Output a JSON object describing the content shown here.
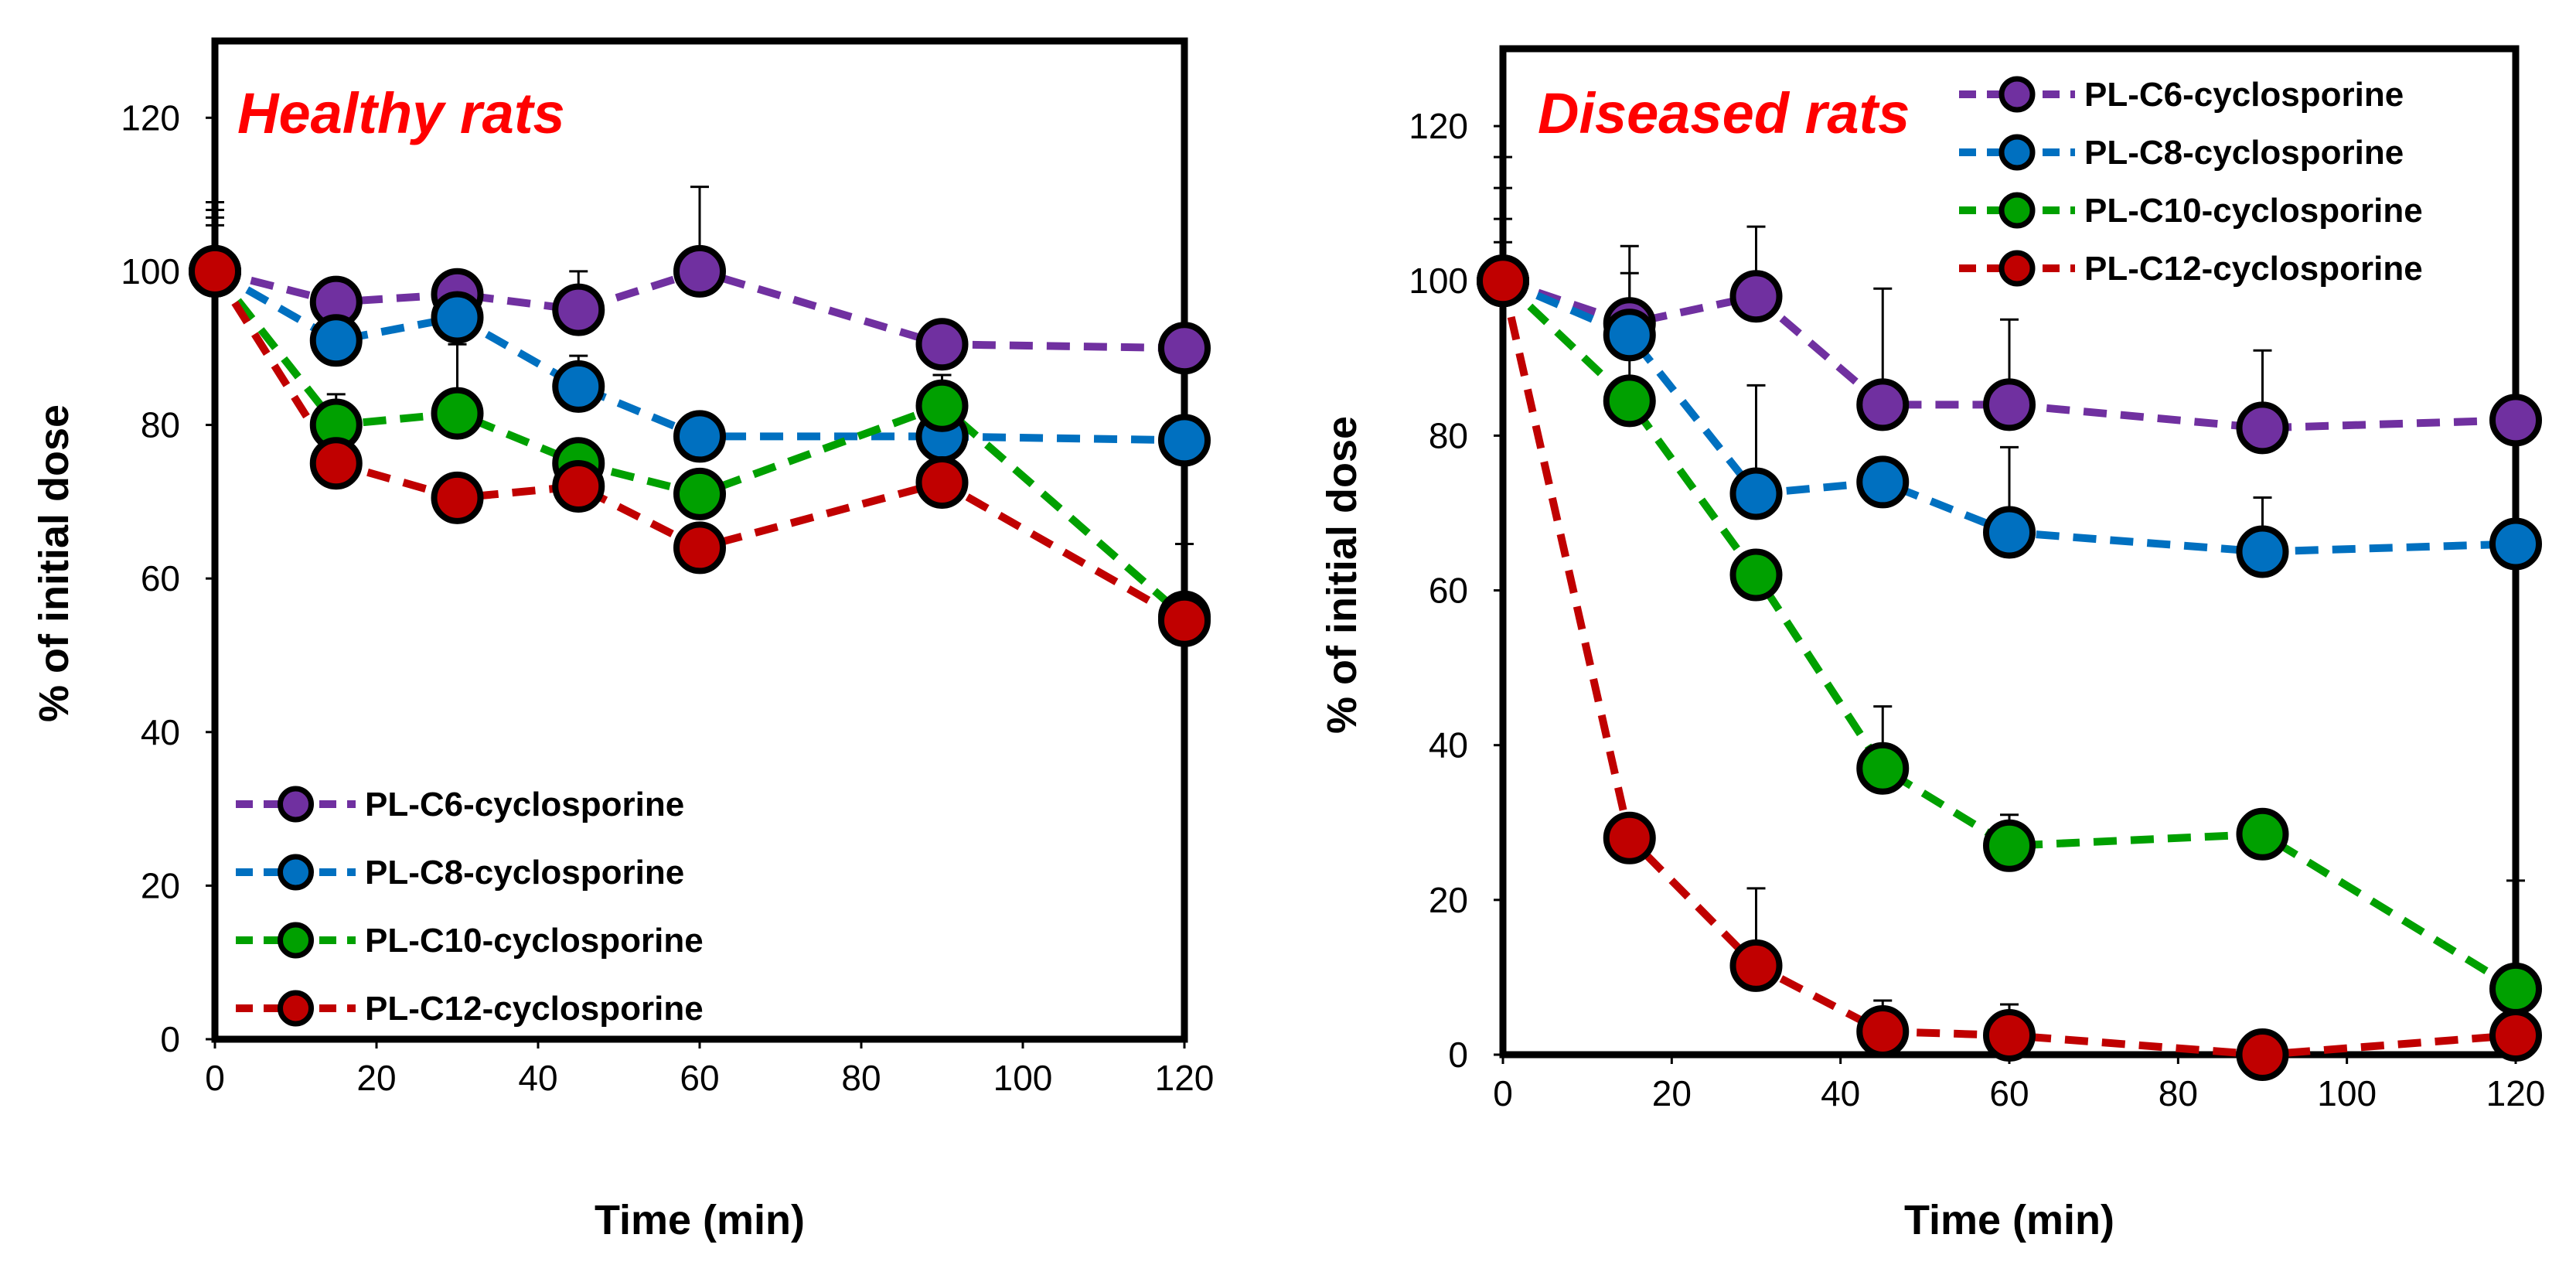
{
  "chart_data": [
    {
      "type": "line",
      "title": "Healthy rats",
      "xlabel": "Time (min)",
      "ylabel": "% of initial dose",
      "xlim": [
        0,
        120
      ],
      "ylim": [
        0,
        130
      ],
      "xticks": [
        0,
        20,
        40,
        60,
        80,
        100,
        120
      ],
      "yticks": [
        0,
        20,
        40,
        60,
        80,
        100,
        120
      ],
      "legend_position": "bottom-left",
      "grid": false,
      "series": [
        {
          "name": "PL-C6-cyclosporine",
          "color": "#7030a0",
          "points": [
            [
              0,
              100
            ],
            [
              15,
              96
            ],
            [
              30,
              97
            ],
            [
              45,
              95
            ],
            [
              60,
              100
            ],
            [
              90,
              90.5
            ],
            [
              120,
              90
            ]
          ],
          "err": [
            9,
            0,
            0,
            5,
            11,
            0,
            0
          ]
        },
        {
          "name": "PL-C8-cyclosporine",
          "color": "#0070c0",
          "points": [
            [
              0,
              100
            ],
            [
              15,
              91
            ],
            [
              30,
              94
            ],
            [
              45,
              85
            ],
            [
              60,
              78.5
            ],
            [
              90,
              78.5
            ],
            [
              120,
              78
            ]
          ],
          "err": [
            8,
            0,
            5,
            4,
            3,
            0,
            0
          ]
        },
        {
          "name": "PL-C10-cyclosporine",
          "color": "#00a000",
          "points": [
            [
              0,
              100
            ],
            [
              15,
              80
            ],
            [
              30,
              81.5
            ],
            [
              45,
              75
            ],
            [
              60,
              71
            ],
            [
              90,
              82.5
            ],
            [
              120,
              55
            ]
          ],
          "err": [
            7,
            4,
            9,
            0,
            0,
            4,
            0
          ]
        },
        {
          "name": "PL-C12-cyclosporine",
          "color": "#c00000",
          "points": [
            [
              0,
              100
            ],
            [
              15,
              75
            ],
            [
              30,
              70.5
            ],
            [
              45,
              72
            ],
            [
              60,
              64
            ],
            [
              90,
              72.5
            ],
            [
              120,
              54.5
            ]
          ],
          "err": [
            6,
            0,
            3,
            0,
            0,
            0,
            10
          ]
        }
      ]
    },
    {
      "type": "line",
      "title": "Diseased rats",
      "xlabel": "Time (min)",
      "ylabel": "% of initial dose",
      "xlim": [
        0,
        120
      ],
      "ylim": [
        0,
        130
      ],
      "xticks": [
        0,
        20,
        40,
        60,
        80,
        100,
        120
      ],
      "yticks": [
        0,
        20,
        40,
        60,
        80,
        100,
        120
      ],
      "legend_position": "top-right",
      "grid": false,
      "series": [
        {
          "name": "PL-C6-cyclosporine",
          "color": "#7030a0",
          "points": [
            [
              0,
              100
            ],
            [
              15,
              94.5
            ],
            [
              30,
              98
            ],
            [
              45,
              84
            ],
            [
              60,
              84
            ],
            [
              90,
              81
            ],
            [
              120,
              82
            ]
          ],
          "err": [
            16,
            10,
            9,
            15,
            11,
            10,
            0
          ]
        },
        {
          "name": "PL-C8-cyclosporine",
          "color": "#0070c0",
          "points": [
            [
              0,
              100
            ],
            [
              15,
              93
            ],
            [
              30,
              72.5
            ],
            [
              45,
              74
            ],
            [
              60,
              67.5
            ],
            [
              90,
              65
            ],
            [
              120,
              66
            ]
          ],
          "err": [
            12,
            8,
            14,
            0,
            11,
            7,
            0
          ]
        },
        {
          "name": "PL-C10-cyclosporine",
          "color": "#00a000",
          "points": [
            [
              0,
              100
            ],
            [
              15,
              84.5
            ],
            [
              30,
              62
            ],
            [
              45,
              37
            ],
            [
              60,
              27
            ],
            [
              90,
              28.5
            ],
            [
              120,
              8.5
            ]
          ],
          "err": [
            8,
            6,
            0,
            8,
            4,
            3,
            14
          ]
        },
        {
          "name": "PL-C12-cyclosporine",
          "color": "#c00000",
          "points": [
            [
              0,
              100
            ],
            [
              15,
              28
            ],
            [
              30,
              11.5
            ],
            [
              45,
              3
            ],
            [
              60,
              2.5
            ],
            [
              90,
              0
            ],
            [
              120,
              2.5
            ]
          ],
          "err": [
            5,
            0,
            10,
            4,
            4,
            0,
            0
          ]
        }
      ]
    }
  ]
}
